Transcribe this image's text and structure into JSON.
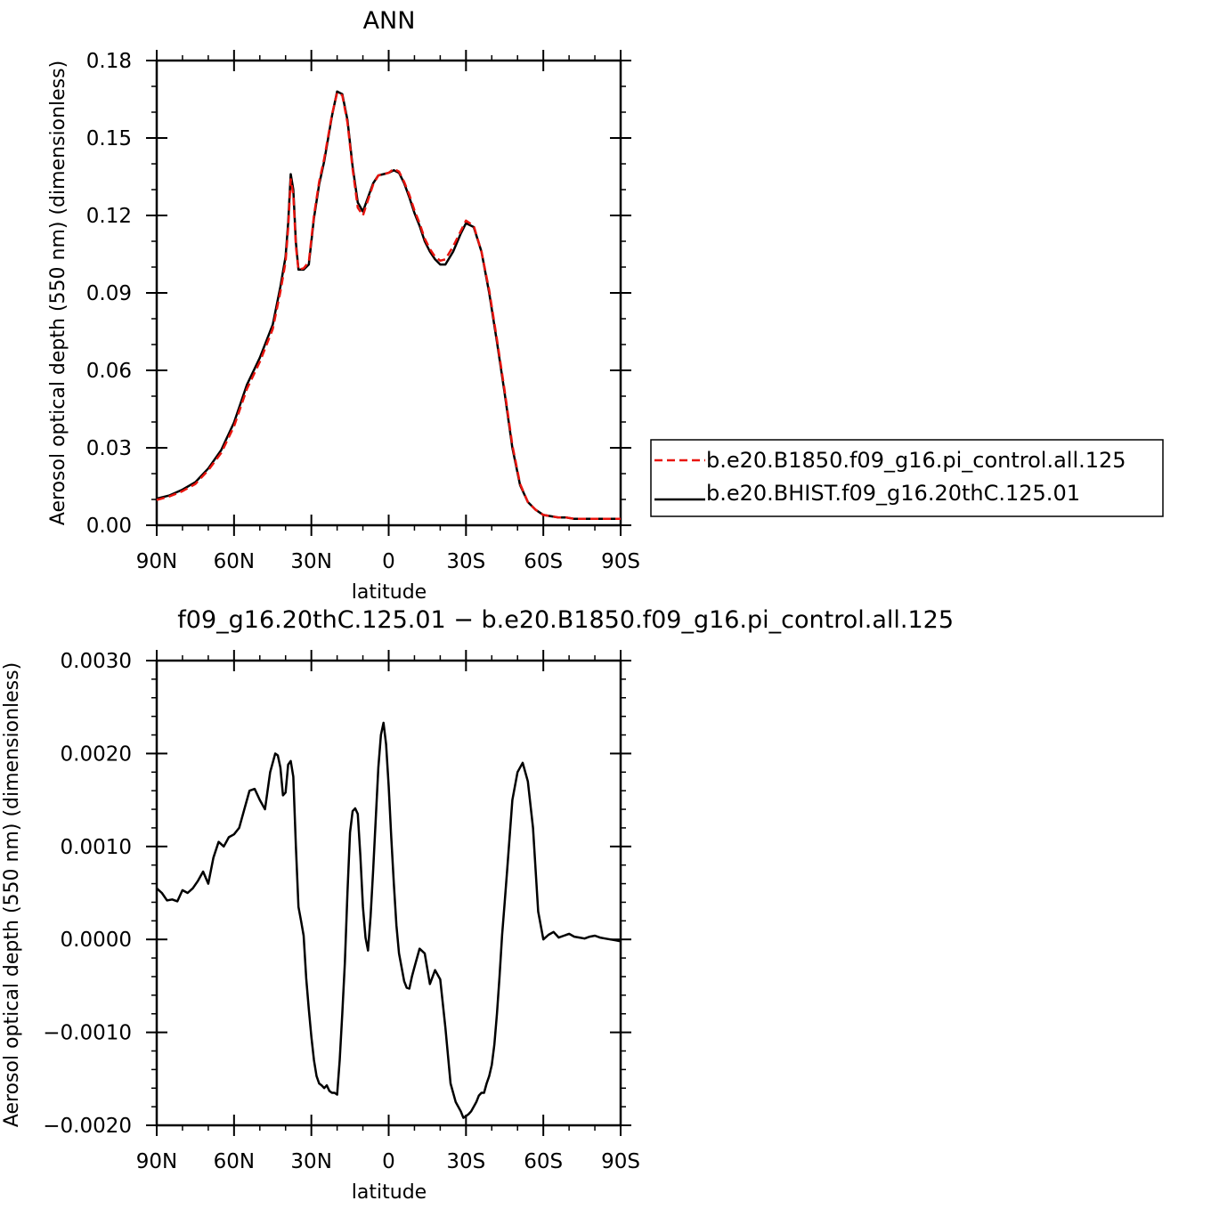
{
  "chart_data": [
    {
      "type": "line",
      "title": "ANN",
      "xlabel": "latitude",
      "ylabel": "Aerosol optical depth (550 nm) (dimensionless)",
      "xlim": [
        90,
        -90
      ],
      "ylim": [
        0.0,
        0.18
      ],
      "x_ticks": [
        90,
        60,
        30,
        0,
        -30,
        -60,
        -90
      ],
      "x_tick_labels": [
        "90N",
        "60N",
        "30N",
        "0",
        "30S",
        "60S",
        "90S"
      ],
      "y_ticks": [
        0.0,
        0.03,
        0.06,
        0.09,
        0.12,
        0.15,
        0.18
      ],
      "y_tick_labels": [
        "0.00",
        "0.03",
        "0.06",
        "0.09",
        "0.12",
        "0.15",
        "0.18"
      ],
      "grid": false,
      "legend_position": "right",
      "series": [
        {
          "name": "b.e20.B1850.f09_g16.pi_control.all.125",
          "color": "#e8140e",
          "dash": "dashed",
          "x": [
            90,
            85,
            80,
            75,
            70,
            65,
            60,
            55,
            50,
            45,
            42,
            40,
            39,
            38,
            37,
            36,
            35,
            33,
            31,
            29,
            27,
            25,
            22,
            20,
            18,
            16,
            14,
            12,
            10,
            8,
            6,
            4,
            2,
            0,
            -2,
            -4,
            -6,
            -8,
            -10,
            -12,
            -14,
            -16,
            -18,
            -20,
            -22,
            -25,
            -28,
            -30,
            -33,
            -36,
            -39,
            -42,
            -45,
            -48,
            -51,
            -54,
            -57,
            -60,
            -63,
            -66,
            -69,
            -72,
            -75,
            -80,
            -85,
            -90
          ],
          "values": [
            0.0098,
            0.0112,
            0.0132,
            0.016,
            0.0213,
            0.028,
            0.0383,
            0.0528,
            0.0633,
            0.076,
            0.0905,
            0.102,
            0.115,
            0.134,
            0.128,
            0.108,
            0.099,
            0.0995,
            0.102,
            0.12,
            0.133,
            0.142,
            0.159,
            0.1675,
            0.1665,
            0.156,
            0.138,
            0.123,
            0.12,
            0.126,
            0.132,
            0.1355,
            0.136,
            0.1365,
            0.138,
            0.137,
            0.133,
            0.128,
            0.122,
            0.117,
            0.111,
            0.107,
            0.104,
            0.1025,
            0.103,
            0.108,
            0.114,
            0.118,
            0.116,
            0.106,
            0.091,
            0.072,
            0.052,
            0.031,
            0.016,
            0.009,
            0.006,
            0.004,
            0.0035,
            0.003,
            0.003,
            0.0025,
            0.0025,
            0.0025,
            0.0025,
            0.0025
          ]
        },
        {
          "name": "b.e20.BHIST.f09_g16.20thC.125.01",
          "color": "#000000",
          "dash": "solid",
          "x": [
            90,
            85,
            80,
            75,
            70,
            65,
            60,
            55,
            50,
            45,
            42,
            40,
            39,
            38,
            37,
            36,
            35,
            33,
            31,
            29,
            27,
            25,
            22,
            20,
            18,
            16,
            14,
            12,
            10,
            8,
            6,
            4,
            2,
            0,
            -2,
            -4,
            -6,
            -8,
            -10,
            -12,
            -14,
            -16,
            -18,
            -20,
            -22,
            -25,
            -28,
            -30,
            -33,
            -36,
            -39,
            -42,
            -45,
            -48,
            -51,
            -54,
            -57,
            -60,
            -63,
            -66,
            -69,
            -72,
            -75,
            -80,
            -85,
            -90
          ],
          "values": [
            0.0103,
            0.0116,
            0.0138,
            0.0167,
            0.022,
            0.0291,
            0.0398,
            0.0544,
            0.0649,
            0.0777,
            0.0924,
            0.104,
            0.117,
            0.136,
            0.13,
            0.1095,
            0.099,
            0.099,
            0.101,
            0.119,
            0.132,
            0.141,
            0.1585,
            0.168,
            0.167,
            0.157,
            0.139,
            0.125,
            0.1215,
            0.127,
            0.1325,
            0.1355,
            0.136,
            0.1365,
            0.1375,
            0.1365,
            0.1325,
            0.127,
            0.121,
            0.116,
            0.11,
            0.106,
            0.103,
            0.101,
            0.101,
            0.106,
            0.113,
            0.117,
            0.1155,
            0.106,
            0.09,
            0.071,
            0.051,
            0.03,
            0.0155,
            0.009,
            0.006,
            0.004,
            0.0035,
            0.003,
            0.003,
            0.0025,
            0.0025,
            0.0025,
            0.0025,
            0.0025
          ]
        }
      ]
    },
    {
      "type": "line",
      "title": "b.e20.BHIST.f09_g16.20thC.125.01 - b.e20.B1850.f09_g16.pi_control.all.125",
      "title_visible": "f09_g16.20thC.125.01 − b.e20.B1850.f09_g16.pi_control.all.125",
      "xlabel": "latitude",
      "ylabel": "Aerosol optical depth (550 nm) (dimensionless)",
      "xlim": [
        90,
        -90
      ],
      "ylim": [
        -0.002,
        0.003
      ],
      "x_ticks": [
        90,
        60,
        30,
        0,
        -30,
        -60,
        -90
      ],
      "x_tick_labels": [
        "90N",
        "60N",
        "30N",
        "0",
        "30S",
        "60S",
        "90S"
      ],
      "y_ticks": [
        -0.002,
        -0.001,
        0.0,
        0.001,
        0.002,
        0.003
      ],
      "y_tick_labels": [
        "−0.0020",
        "−0.0010",
        "0.0000",
        "0.0010",
        "0.0020",
        "0.0030"
      ],
      "grid": false,
      "series": [
        {
          "name": "",
          "color": "#000000",
          "dash": "solid",
          "x": [
            90,
            88,
            86,
            84,
            82,
            80,
            78,
            76,
            74,
            72,
            70,
            68,
            66,
            64,
            62,
            60,
            58,
            56,
            54,
            52,
            50,
            48,
            46,
            44,
            43,
            42,
            41,
            40,
            39,
            38,
            37,
            36,
            35,
            34,
            33,
            32,
            31,
            30,
            29,
            28,
            27,
            26,
            25,
            24,
            23,
            22,
            21,
            20,
            19,
            18,
            17,
            16,
            15,
            14,
            13,
            12,
            11,
            10,
            9,
            8,
            7,
            6,
            5,
            4,
            3,
            2,
            1,
            0,
            -1,
            -2,
            -3,
            -4,
            -5,
            -6,
            -7,
            -8,
            -9,
            -10,
            -12,
            -14,
            -16,
            -18,
            -20,
            -22,
            -24,
            -26,
            -28,
            -29,
            -30,
            -31,
            -32,
            -33,
            -34,
            -35,
            -36,
            -37,
            -38,
            -39,
            -40,
            -41,
            -42,
            -43,
            -44,
            -45,
            -46,
            -48,
            -50,
            -52,
            -54,
            -56,
            -57,
            -58,
            -60,
            -62,
            -64,
            -66,
            -68,
            -70,
            -72,
            -74,
            -76,
            -78,
            -80,
            -82,
            -84,
            -86,
            -88,
            -90
          ],
          "values": [
            0.00055,
            0.0005,
            0.00042,
            0.00043,
            0.00041,
            0.00053,
            0.0005,
            0.00055,
            0.00063,
            0.00073,
            0.0006,
            0.00088,
            0.00105,
            0.001,
            0.0011,
            0.00113,
            0.0012,
            0.0014,
            0.0016,
            0.00162,
            0.0015,
            0.0014,
            0.0018,
            0.002,
            0.00198,
            0.00185,
            0.00155,
            0.00158,
            0.00188,
            0.00192,
            0.00175,
            0.001,
            0.00035,
            0.0002,
            4e-05,
            -0.00042,
            -0.00075,
            -0.00105,
            -0.0013,
            -0.00147,
            -0.00155,
            -0.00157,
            -0.0016,
            -0.00157,
            -0.00163,
            -0.00165,
            -0.00165,
            -0.00167,
            -0.0013,
            -0.0008,
            -0.00025,
            0.0005,
            0.00115,
            0.00138,
            0.00141,
            0.00135,
            0.0009,
            0.00035,
            2e-05,
            -0.00012,
            0.00025,
            0.00075,
            0.0013,
            0.00185,
            0.0022,
            0.00233,
            0.0021,
            0.00165,
            0.0011,
            0.0006,
            0.00015,
            -0.00015,
            -0.0003,
            -0.00045,
            -0.00052,
            -0.00053,
            -0.0004,
            -0.0003,
            -0.0001,
            -0.00015,
            -0.00048,
            -0.00033,
            -0.00043,
            -0.00095,
            -0.00155,
            -0.00175,
            -0.00185,
            -0.00192,
            -0.0019,
            -0.00188,
            -0.00185,
            -0.0018,
            -0.00175,
            -0.00168,
            -0.00165,
            -0.00165,
            -0.00155,
            -0.00147,
            -0.00135,
            -0.00113,
            -0.0008,
            -0.0004,
            5e-05,
            0.0004,
            0.00075,
            0.0015,
            0.0018,
            0.0019,
            0.0017,
            0.0012,
            0.00075,
            0.0003,
            0.0,
            5e-05,
            8e-05,
            2e-05,
            4e-05,
            6e-05,
            3e-05,
            2e-05,
            1e-05,
            3e-05,
            4e-05,
            2e-05,
            1e-05,
            0.0,
            -1e-05,
            -2e-05
          ]
        }
      ]
    }
  ]
}
